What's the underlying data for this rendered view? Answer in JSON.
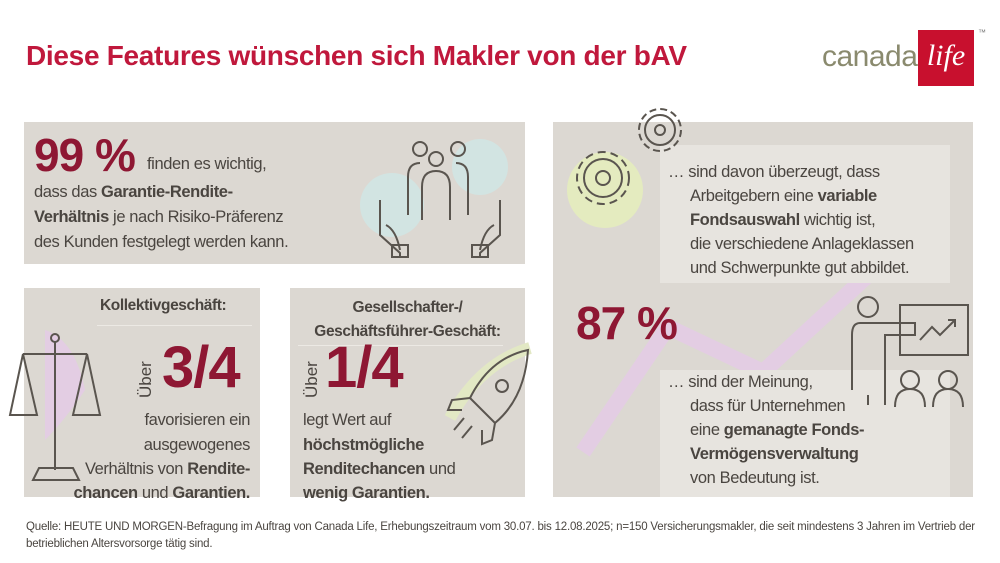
{
  "header": {
    "title": "Diese Features wünschen sich Makler von der bAV",
    "logo": {
      "word1": "canada",
      "word2": "life",
      "tm": "™"
    }
  },
  "colors": {
    "title": "#c0183c",
    "numbers": "#8e1733",
    "panel": "#dcd8d2",
    "logo_red": "#c8102e"
  },
  "card_99": {
    "value": "99 %",
    "l1": "finden es wichtig,",
    "l2a": "dass das ",
    "l2b": "Garantie-Rendite-",
    "l3a": "Verhältnis",
    "l3b": " je nach Risiko-Präferenz",
    "l4": "des Kunden festgelegt werden kann.",
    "icon": "hands-people-icon"
  },
  "card_kollektiv": {
    "heading": "Kollektivgeschäft:",
    "prefix": "Über",
    "value": "3/4",
    "l1": "favorisieren ein",
    "l2": "ausgewogenes",
    "l3a": "Verhältnis von ",
    "l3b": "Rendite-",
    "l4a": "chancen",
    "l4b": " und ",
    "l4c": "Garantien.",
    "icon": "scales-icon"
  },
  "card_gf": {
    "heading1": "Gesellschafter-/",
    "heading2": "Geschäftsführer-Geschäft:",
    "prefix": "Über",
    "value": "1/4",
    "l1": "legt Wert auf",
    "l2": "höchstmögliche",
    "l3a": "Renditechancen",
    "l3b": " und",
    "l4": "wenig Garantien.",
    "icon": "rocket-icon"
  },
  "card_87": {
    "a": {
      "l1": "… sind davon überzeugt, dass",
      "l2a": "Arbeitgebern eine ",
      "l2b": "variable",
      "l3a": "Fondsauswahl",
      "l3b": " wichtig ist,",
      "l4": "die verschiedene Anlageklassen",
      "l5": "und Schwerpunkte gut abbildet."
    },
    "value": "87 %",
    "b": {
      "l1": "… sind der Meinung,",
      "l2": "dass für Unternehmen",
      "l3a": "eine ",
      "l3b": "gemanagte Fonds-",
      "l4": "Vermögensverwaltung",
      "l5": "von Bedeutung ist."
    },
    "icons": [
      "gears-icon",
      "presenter-chart-icon"
    ]
  },
  "footer": {
    "source": "Quelle: HEUTE UND MORGEN-Befragung im Auftrag von Canada Life, Erhebungszeitraum vom 30.07. bis 12.08.2025; n=150 Versicherungsmakler, die seit mindestens 3 Jahren im Vertrieb der betrieblichen Altersvorsorge tätig sind."
  }
}
